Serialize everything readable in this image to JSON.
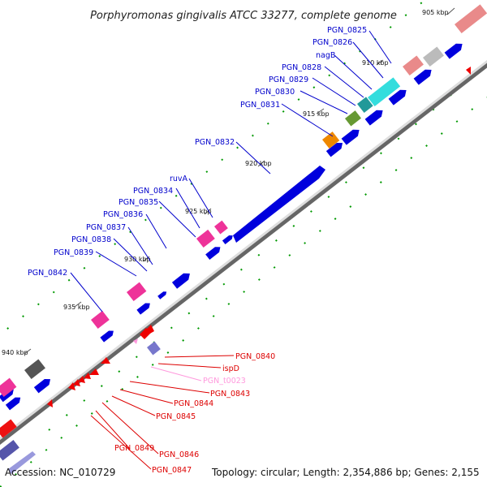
{
  "title": "Porphyromonas gingivalis ATCC 33277, complete genome",
  "footer": {
    "accession": "Accession: NC_010729",
    "summary": "Topology: circular; Length: 2,354,886 bp; Genes: 2,155"
  },
  "colors": {
    "forward": "#0000dd",
    "reverse": "#ee0000",
    "forward_label": "#0000cc",
    "reverse_label": "#dd0000",
    "trna": "#ff99dd",
    "gc_skew": "#009900",
    "backbone": "#999999"
  },
  "scale": {
    "unit": "kbp",
    "ticks": [
      {
        "label": "905 kbp"
      },
      {
        "label": "910 kbp"
      },
      {
        "label": "915 kbp"
      },
      {
        "label": "920 kbp"
      },
      {
        "label": "925 kbp"
      },
      {
        "label": "930 kbp"
      },
      {
        "label": "935 kbp"
      },
      {
        "label": "940 kbp"
      }
    ]
  },
  "labels": {
    "forward_strand": [
      "PGN_0825",
      "PGN_0826",
      "nagB",
      "PGN_0828",
      "PGN_0829",
      "PGN_0830",
      "PGN_0831",
      "PGN_0832",
      "PGN_0834",
      "ruvA",
      "PGN_0835",
      "PGN_0836",
      "PGN_0837",
      "PGN_0838",
      "PGN_0839",
      "PGN_0842"
    ],
    "reverse_strand": [
      "PGN_0840",
      "ispD",
      "PGN_t0023",
      "PGN_0843",
      "PGN_0844",
      "PGN_0845",
      "PGN_0849",
      "PGN_0846",
      "PGN_0847"
    ]
  }
}
